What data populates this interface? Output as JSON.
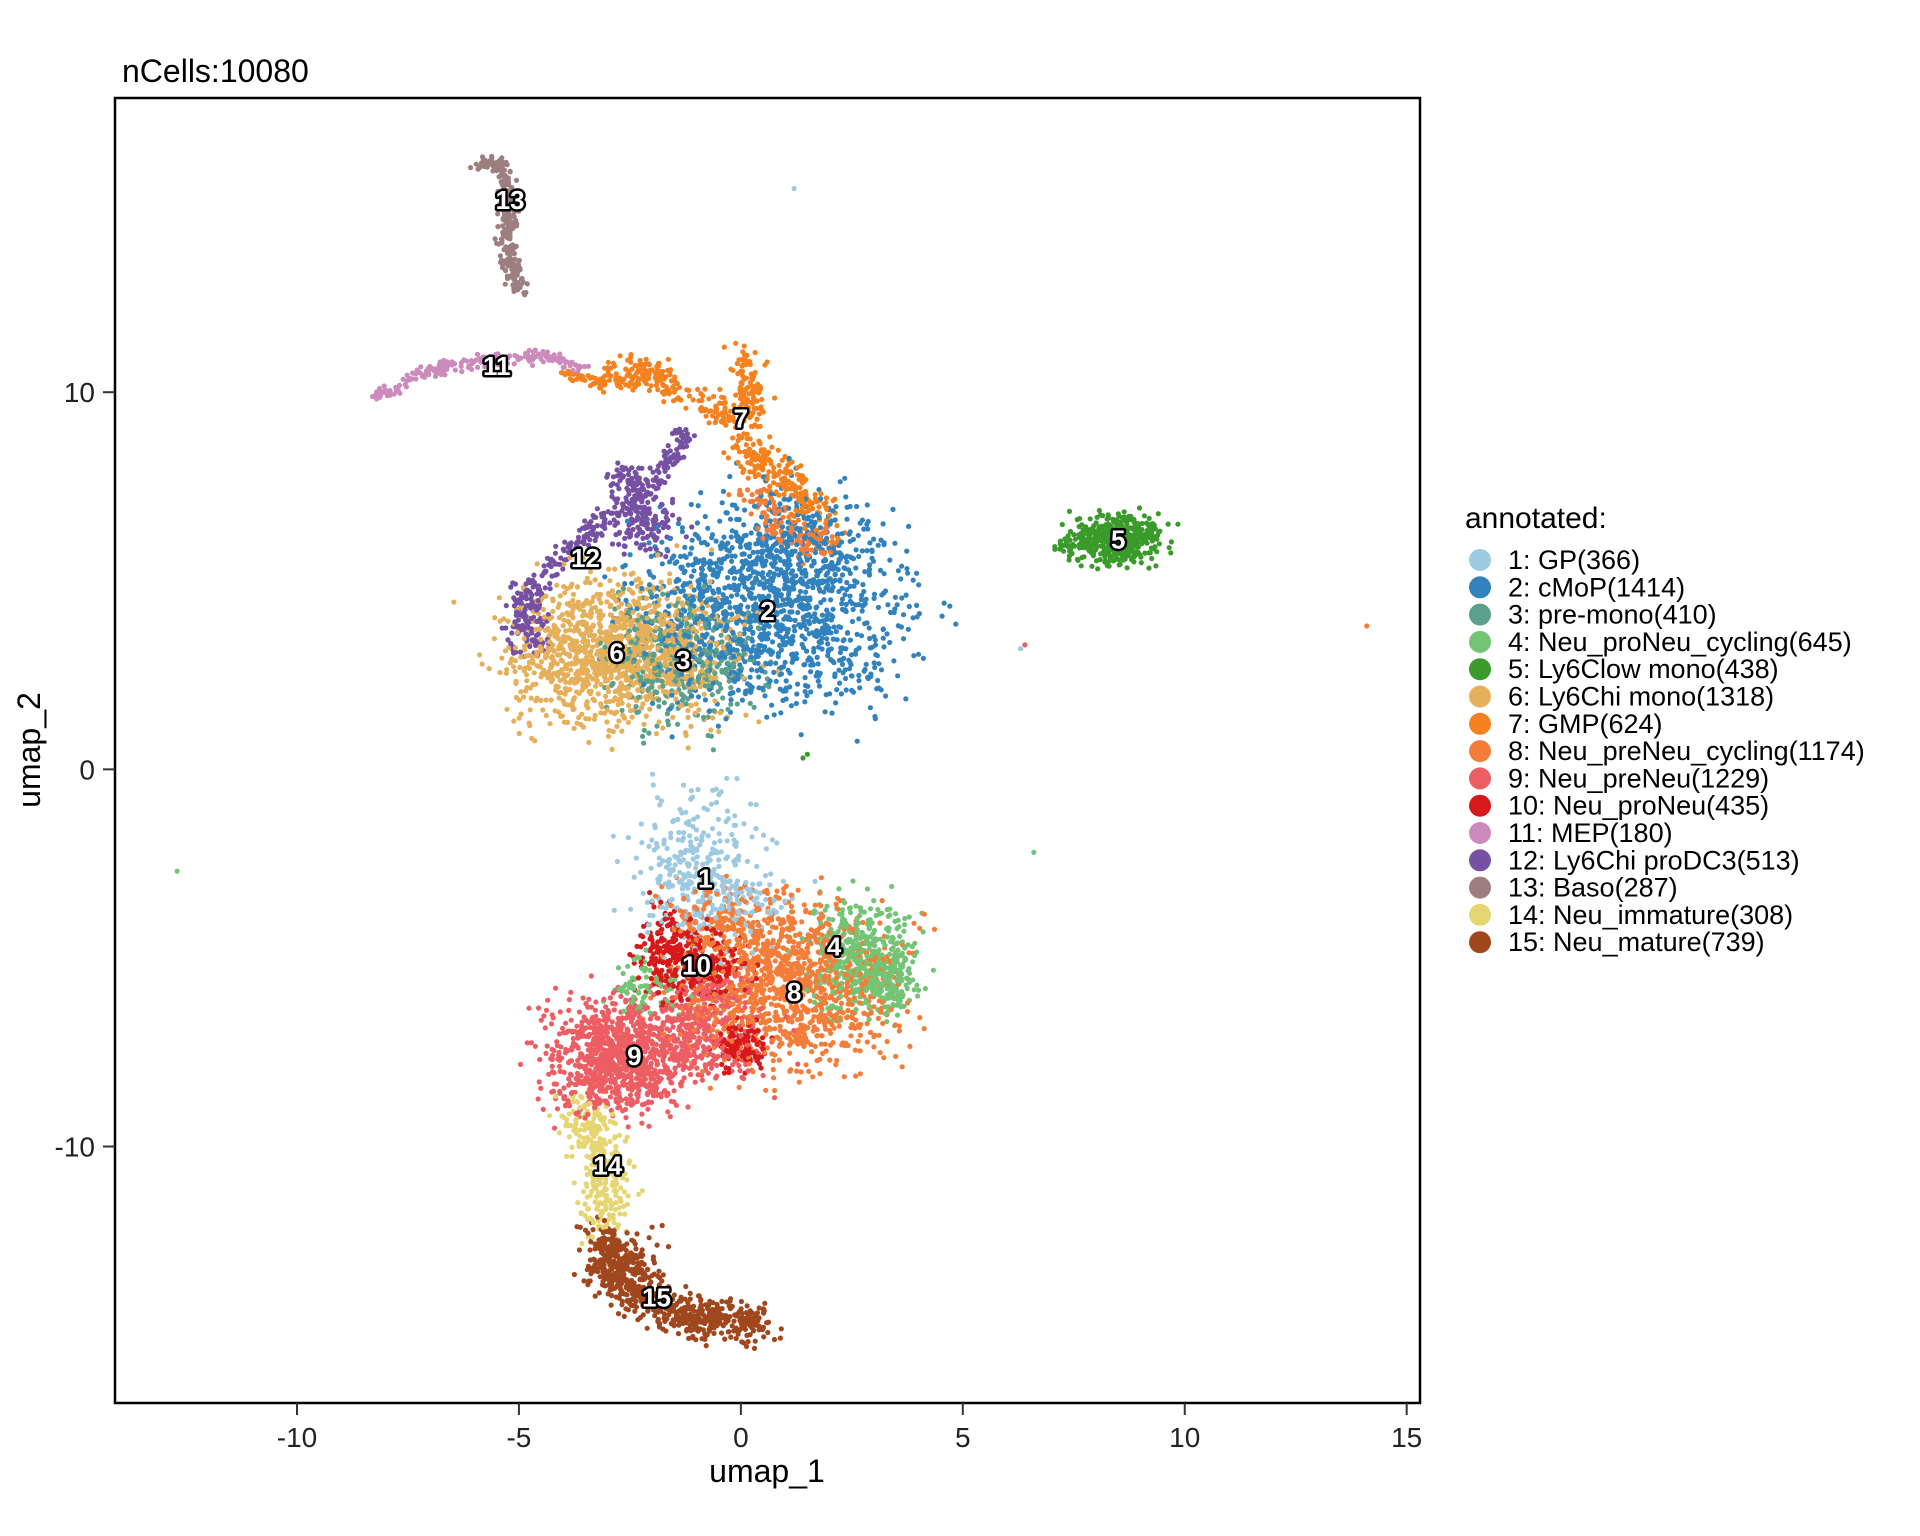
{
  "chart_data": {
    "type": "scatter",
    "title": "nCells:10080",
    "xlabel": "umap_1",
    "ylabel": "umap_2",
    "xlim": [
      -14.1,
      15.3
    ],
    "ylim": [
      -16.8,
      17.8
    ],
    "xticks": [
      -10,
      -5,
      0,
      5,
      10,
      15
    ],
    "yticks": [
      -10,
      0,
      10
    ],
    "xtick_labels": [
      "-10",
      "-5",
      "0",
      "5",
      "10",
      "15"
    ],
    "ytick_labels": [
      "-10",
      "0",
      "10"
    ],
    "grid": false,
    "legend": {
      "title": "annotated:",
      "position": "right"
    },
    "clusters": [
      {
        "id": "1",
        "label": "1: GP(366)",
        "color": "#9ECAE1",
        "count": 366,
        "center": [
          -0.8,
          -2.9
        ]
      },
      {
        "id": "2",
        "label": "2: cMoP(1414)",
        "color": "#3182BD",
        "count": 1414,
        "center": [
          0.6,
          4.2
        ]
      },
      {
        "id": "3",
        "label": "3: pre-mono(410)",
        "color": "#5BA08A",
        "count": 410,
        "center": [
          -1.3,
          2.9
        ]
      },
      {
        "id": "4",
        "label": "4: Neu_proNeu_cycling(645)",
        "color": "#74C476",
        "count": 645,
        "center": [
          2.1,
          -4.7
        ]
      },
      {
        "id": "5",
        "label": "5: Ly6Clow mono(438)",
        "color": "#3A9B2A",
        "count": 438,
        "center": [
          8.5,
          6.1
        ]
      },
      {
        "id": "6",
        "label": "6: Ly6Chi mono(1318)",
        "color": "#E6AF5A",
        "count": 1318,
        "center": [
          -2.8,
          3.1
        ]
      },
      {
        "id": "7",
        "label": "7: GMP(624)",
        "color": "#F5821F",
        "count": 624,
        "center": [
          0.0,
          9.3
        ]
      },
      {
        "id": "8",
        "label": "8: Neu_preNeu_cycling(1174)",
        "color": "#F47D3A",
        "count": 1174,
        "center": [
          1.2,
          -5.9
        ]
      },
      {
        "id": "9",
        "label": "9: Neu_preNeu(1229)",
        "color": "#EC5E63",
        "count": 1229,
        "center": [
          -2.4,
          -7.6
        ]
      },
      {
        "id": "10",
        "label": "10: Neu_proNeu(435)",
        "color": "#D7191C",
        "count": 435,
        "center": [
          -1.0,
          -5.2
        ]
      },
      {
        "id": "11",
        "label": "11: MEP(180)",
        "color": "#CC8BBC",
        "count": 180,
        "center": [
          -5.5,
          10.7
        ]
      },
      {
        "id": "12",
        "label": "12: Ly6Chi proDC3(513)",
        "color": "#7550A3",
        "count": 513,
        "center": [
          -3.5,
          5.6
        ]
      },
      {
        "id": "13",
        "label": "13: Baso(287)",
        "color": "#9D7F80",
        "count": 287,
        "center": [
          -5.2,
          15.1
        ]
      },
      {
        "id": "14",
        "label": "14: Neu_immature(308)",
        "color": "#E5D672",
        "count": 308,
        "center": [
          -3.0,
          -10.5
        ]
      },
      {
        "id": "15",
        "label": "15: Neu_mature(739)",
        "color": "#A0471E",
        "count": 739,
        "center": [
          -1.9,
          -14.0
        ]
      }
    ]
  }
}
